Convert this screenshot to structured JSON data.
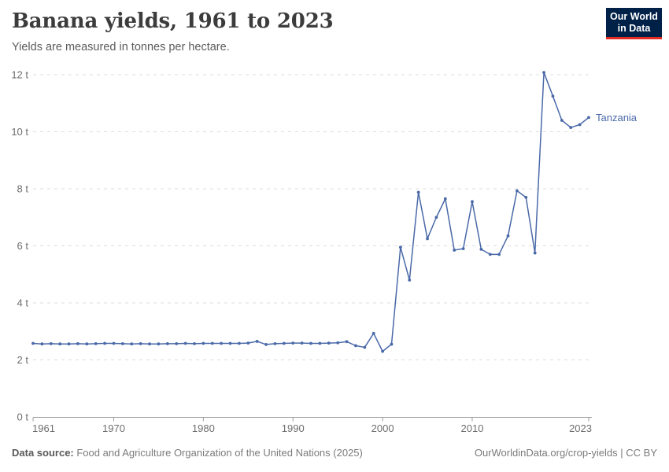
{
  "header": {
    "title": "Banana yields, 1961 to 2023",
    "subtitle": "Yields are measured in tonnes per hectare.",
    "logo": {
      "line1": "Our World",
      "line2": "in Data",
      "bg_color": "#002147",
      "accent_color": "#e62b25"
    }
  },
  "chart_data": {
    "type": "line",
    "title": "Banana yields, 1961 to 2023",
    "subtitle": "Yields are measured in tonnes per hectare.",
    "unit": "tonnes per hectare",
    "xlim": [
      1961,
      2023
    ],
    "ylim": [
      0,
      12
    ],
    "grid": "horizontal dashed",
    "legend_position": "end-of-line label",
    "xticks": [
      1961,
      1970,
      1980,
      1990,
      2000,
      2010,
      2023
    ],
    "yticks": [
      0,
      2,
      4,
      6,
      8,
      10,
      12
    ],
    "ytick_suffix": " t",
    "x": [
      1961,
      1962,
      1963,
      1964,
      1965,
      1966,
      1967,
      1968,
      1969,
      1970,
      1971,
      1972,
      1973,
      1974,
      1975,
      1976,
      1977,
      1978,
      1979,
      1980,
      1981,
      1982,
      1983,
      1984,
      1985,
      1986,
      1987,
      1988,
      1989,
      1990,
      1991,
      1992,
      1993,
      1994,
      1995,
      1996,
      1997,
      1998,
      1999,
      2000,
      2001,
      2002,
      2003,
      2004,
      2005,
      2006,
      2007,
      2008,
      2009,
      2010,
      2011,
      2012,
      2013,
      2014,
      2015,
      2016,
      2017,
      2018,
      2019,
      2020,
      2021,
      2022,
      2023
    ],
    "series": [
      {
        "name": "Tanzania",
        "color": "#4a69a8",
        "values": [
          2.58,
          2.56,
          2.57,
          2.56,
          2.56,
          2.57,
          2.56,
          2.57,
          2.58,
          2.58,
          2.57,
          2.56,
          2.57,
          2.56,
          2.56,
          2.57,
          2.57,
          2.58,
          2.57,
          2.58,
          2.58,
          2.58,
          2.58,
          2.58,
          2.59,
          2.65,
          2.54,
          2.57,
          2.58,
          2.59,
          2.59,
          2.58,
          2.58,
          2.59,
          2.6,
          2.64,
          2.5,
          2.44,
          2.93,
          2.3,
          2.55,
          5.95,
          4.8,
          7.88,
          6.25,
          7.0,
          7.65,
          5.85,
          5.9,
          7.55,
          5.88,
          5.7,
          5.7,
          6.35,
          7.93,
          7.7,
          5.75,
          12.08,
          11.25,
          10.4,
          10.15,
          10.25,
          10.5
        ]
      }
    ]
  },
  "footer": {
    "datasource_label": "Data source:",
    "datasource_value": " Food and Agriculture Organization of the United Nations (2025)",
    "link": "OurWorldinData.org/crop-yields | CC BY"
  }
}
